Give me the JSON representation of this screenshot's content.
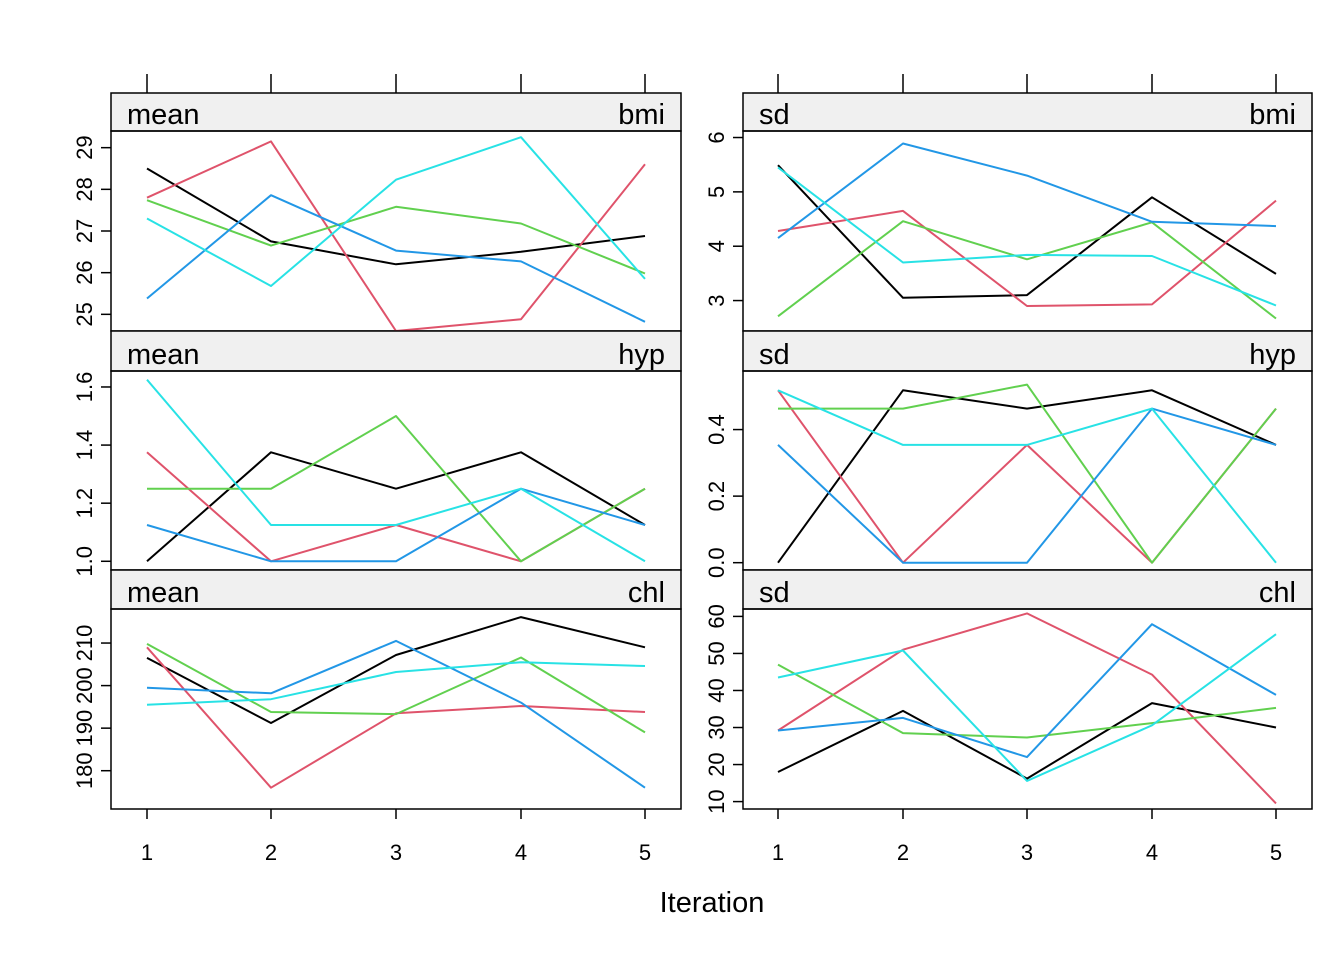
{
  "chart_data": {
    "type": "line",
    "xlabel": "Iteration",
    "x": [
      1,
      2,
      3,
      4,
      5
    ],
    "x_ticks": [
      "1",
      "2",
      "3",
      "4",
      "5"
    ],
    "series_colors": [
      "#000000",
      "#DF536B",
      "#61D04F",
      "#2297E6",
      "#28E2E5"
    ],
    "panels": [
      {
        "stat": "mean",
        "var": "bmi",
        "ylim": [
          24.6,
          29.4
        ],
        "y_ticks": [
          25,
          26,
          27,
          28,
          29
        ],
        "series": [
          {
            "values": [
              28.5,
              26.75,
              26.2,
              26.5,
              26.88
            ]
          },
          {
            "values": [
              27.8,
              29.15,
              24.6,
              24.88,
              28.6
            ]
          },
          {
            "values": [
              27.74,
              26.65,
              27.58,
              27.18,
              25.98
            ]
          },
          {
            "values": [
              25.38,
              27.86,
              26.53,
              26.27,
              24.82
            ]
          },
          {
            "values": [
              27.3,
              25.68,
              28.23,
              29.25,
              25.85
            ]
          }
        ]
      },
      {
        "stat": "mean",
        "var": "hyp",
        "ylim": [
          0.97,
          1.655
        ],
        "y_ticks": [
          "1.0",
          "1.2",
          "1.4",
          "1.6"
        ],
        "series": [
          {
            "values": [
              1.0,
              1.375,
              1.25,
              1.375,
              1.125
            ]
          },
          {
            "values": [
              1.375,
              1.0,
              1.125,
              1.0,
              1.25
            ]
          },
          {
            "values": [
              1.25,
              1.25,
              1.5,
              1.0,
              1.25
            ]
          },
          {
            "values": [
              1.125,
              1.0,
              1.0,
              1.25,
              1.125
            ]
          },
          {
            "values": [
              1.625,
              1.125,
              1.125,
              1.25,
              1.0
            ]
          }
        ]
      },
      {
        "stat": "mean",
        "var": "chl",
        "ylim": [
          171,
          218
        ],
        "y_ticks": [
          180,
          190,
          200,
          210
        ],
        "series": [
          {
            "values": [
              206.5,
              191.2,
              207.2,
              216.1,
              209.0
            ]
          },
          {
            "values": [
              209.0,
              176.0,
              193.5,
              195.2,
              193.8
            ]
          },
          {
            "values": [
              209.8,
              193.8,
              193.3,
              206.6,
              189.0
            ]
          },
          {
            "values": [
              199.5,
              198.2,
              210.5,
              196.0,
              176.0
            ]
          },
          {
            "values": [
              195.5,
              196.8,
              203.2,
              205.5,
              204.6
            ]
          }
        ]
      },
      {
        "stat": "sd",
        "var": "bmi",
        "ylim": [
          2.44,
          6.12
        ],
        "y_ticks": [
          3,
          4,
          5,
          6
        ],
        "series": [
          {
            "values": [
              5.49,
              3.05,
              3.1,
              4.9,
              3.49
            ]
          },
          {
            "values": [
              4.28,
              4.65,
              2.9,
              2.93,
              4.84
            ]
          },
          {
            "values": [
              2.71,
              4.46,
              3.76,
              4.44,
              2.67
            ]
          },
          {
            "values": [
              4.15,
              5.89,
              5.3,
              4.45,
              4.37
            ]
          },
          {
            "values": [
              5.45,
              3.7,
              3.84,
              3.82,
              2.91
            ]
          }
        ]
      },
      {
        "stat": "sd",
        "var": "hyp",
        "ylim": [
          -0.022,
          0.576
        ],
        "y_ticks": [
          "0.0",
          "0.2",
          "0.4"
        ],
        "series": [
          {
            "values": [
              0.0,
              0.518,
              0.463,
              0.518,
              0.354
            ]
          },
          {
            "values": [
              0.518,
              0.0,
              0.354,
              0.0,
              0.463
            ]
          },
          {
            "values": [
              0.463,
              0.463,
              0.535,
              0.0,
              0.463
            ]
          },
          {
            "values": [
              0.354,
              0.0,
              0.0,
              0.463,
              0.354
            ]
          },
          {
            "values": [
              0.518,
              0.354,
              0.354,
              0.463,
              0.0
            ]
          }
        ]
      },
      {
        "stat": "sd",
        "var": "chl",
        "ylim": [
          8,
          62
        ],
        "y_ticks": [
          10,
          20,
          30,
          40,
          50,
          60
        ],
        "series": [
          {
            "values": [
              18.0,
              34.5,
              16.2,
              36.6,
              30.0
            ]
          },
          {
            "values": [
              29.2,
              51.0,
              60.8,
              44.3,
              9.5
            ]
          },
          {
            "values": [
              47.0,
              28.5,
              27.3,
              31.2,
              35.3
            ]
          },
          {
            "values": [
              29.2,
              32.6,
              22.0,
              57.9,
              38.8
            ]
          },
          {
            "values": [
              43.5,
              50.8,
              15.6,
              30.6,
              55.2
            ]
          }
        ]
      }
    ]
  }
}
